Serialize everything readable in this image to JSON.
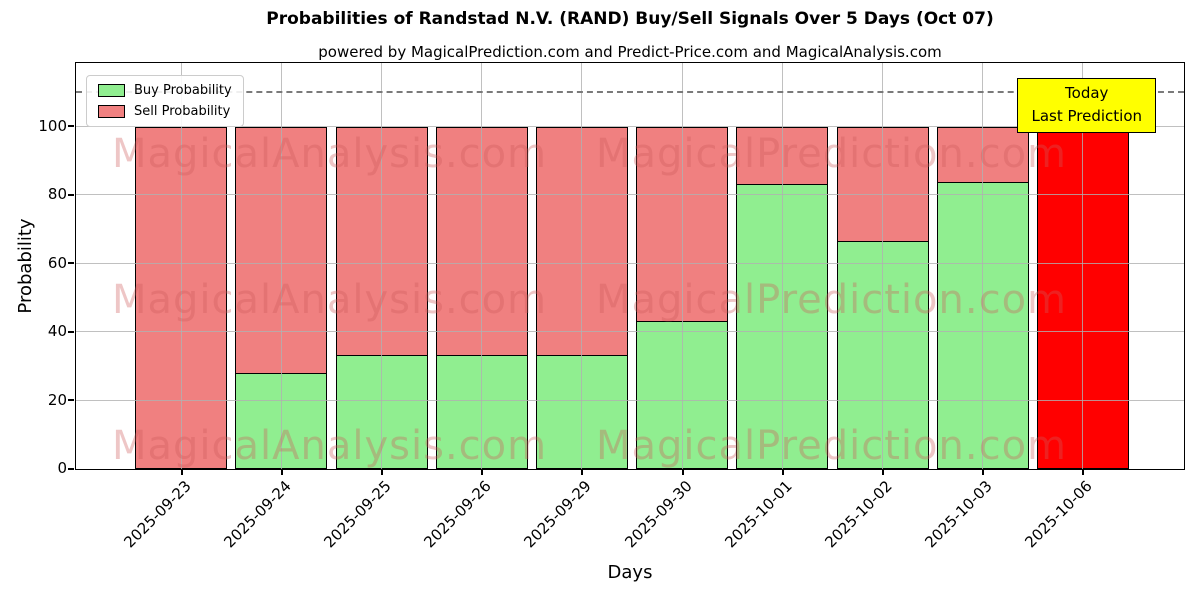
{
  "chart_data": {
    "type": "bar",
    "stacked": true,
    "title": "Probabilities of Randstad N.V. (RAND) Buy/Sell Signals Over 5 Days (Oct 07)",
    "subtitle": "powered by MagicalPrediction.com and Predict-Price.com and MagicalAnalysis.com",
    "xlabel": "Days",
    "ylabel": "Probability",
    "categories": [
      "2025-09-23",
      "2025-09-24",
      "2025-09-25",
      "2025-09-26",
      "2025-09-29",
      "2025-09-30",
      "2025-10-01",
      "2025-10-02",
      "2025-10-03",
      "2025-10-06"
    ],
    "series": [
      {
        "name": "Buy Probability",
        "color": "#90ee90",
        "values": [
          0,
          28.3,
          33.5,
          33.3,
          33.3,
          43.3,
          83.5,
          66.7,
          84.0,
          0
        ]
      },
      {
        "name": "Sell Probability",
        "color": "#f08080",
        "values": [
          100,
          71.7,
          66.5,
          66.7,
          66.7,
          56.7,
          16.5,
          33.3,
          16.0,
          100
        ]
      }
    ],
    "today_bar": {
      "category": "2025-10-06",
      "color": "#ff0000",
      "value": 100
    },
    "yticks": [
      0,
      20,
      40,
      60,
      80,
      100
    ],
    "ylim": [
      0,
      118
    ],
    "dashed_line_y": 110,
    "grid": true,
    "legend_position": "upper left",
    "bar_edge_color": "#000000"
  },
  "annotation": {
    "line1": "Today",
    "line2": "Last Prediction",
    "bg_color": "#ffff00"
  },
  "watermarks": {
    "left_text": "MagicalAnalysis.com",
    "right_text": "MagicalPrediction.com",
    "color": "rgba(205,92,92,0.35)"
  }
}
